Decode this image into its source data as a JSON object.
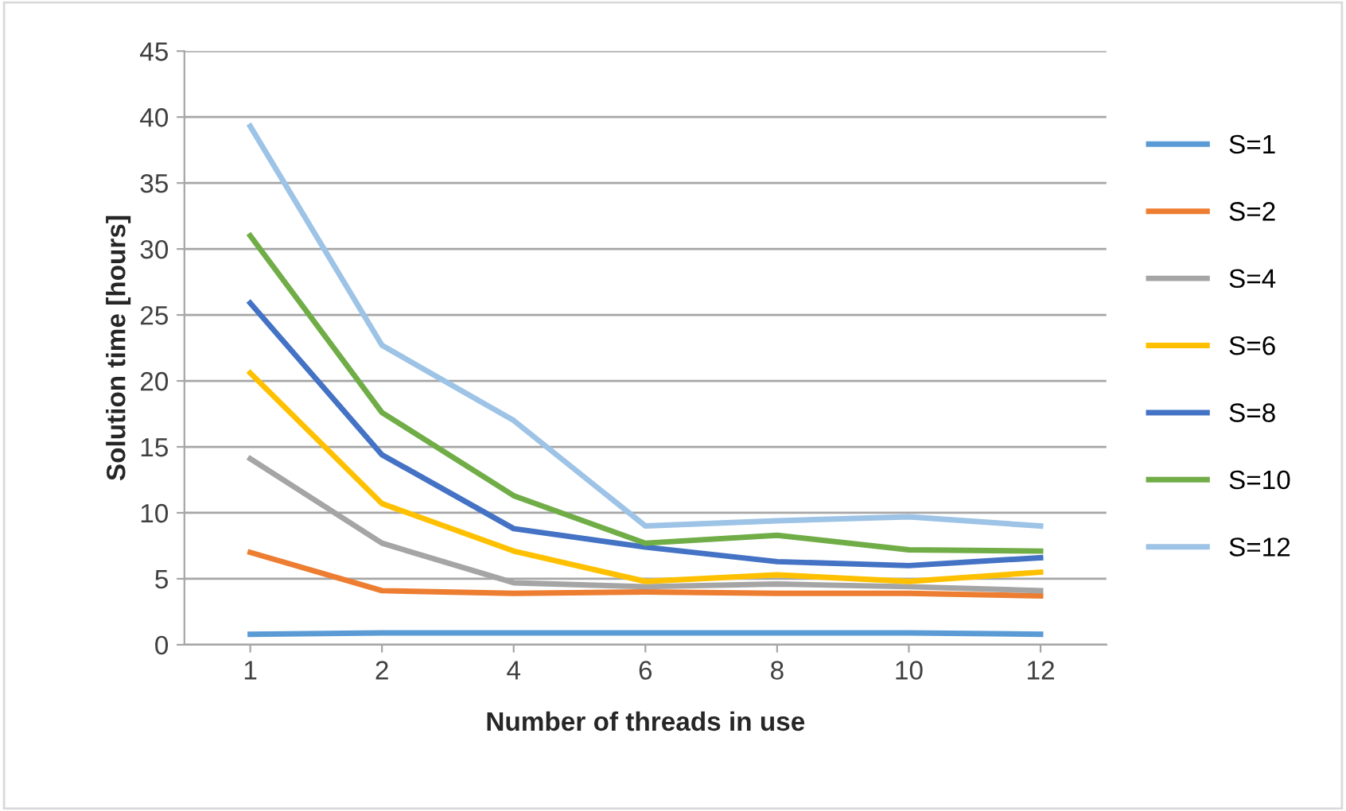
{
  "chart_data": {
    "type": "line",
    "xlabel": "Number of threads in use",
    "ylabel": "Solution time [hours]",
    "categories": [
      "1",
      "2",
      "4",
      "6",
      "8",
      "10",
      "12"
    ],
    "series": [
      {
        "name": "S=1",
        "color": "#5b9bd5",
        "values": [
          0.8,
          0.9,
          0.9,
          0.9,
          0.9,
          0.9,
          0.8
        ]
      },
      {
        "name": "S=2",
        "color": "#ed7d31",
        "values": [
          7.0,
          4.1,
          3.9,
          4.0,
          3.9,
          3.9,
          3.7
        ]
      },
      {
        "name": "S=4",
        "color": "#a5a5a5",
        "values": [
          14.1,
          7.7,
          4.7,
          4.4,
          4.6,
          4.4,
          4.1
        ]
      },
      {
        "name": "S=6",
        "color": "#ffc000",
        "values": [
          20.6,
          10.7,
          7.1,
          4.8,
          5.3,
          4.8,
          5.5
        ]
      },
      {
        "name": "S=8",
        "color": "#4472c4",
        "values": [
          25.9,
          14.4,
          8.8,
          7.4,
          6.3,
          6.0,
          6.6
        ]
      },
      {
        "name": "S=10",
        "color": "#70ad47",
        "values": [
          31.0,
          17.6,
          11.3,
          7.7,
          8.3,
          7.2,
          7.1
        ]
      },
      {
        "name": "S=12",
        "color": "#9dc3e6",
        "values": [
          39.3,
          22.7,
          17.0,
          9.0,
          9.4,
          9.7,
          9.0
        ]
      }
    ],
    "ylim": [
      0,
      45
    ],
    "yticks": [
      0,
      5,
      10,
      15,
      20,
      25,
      30,
      35,
      40,
      45
    ],
    "grid": "y",
    "legend": "right"
  }
}
